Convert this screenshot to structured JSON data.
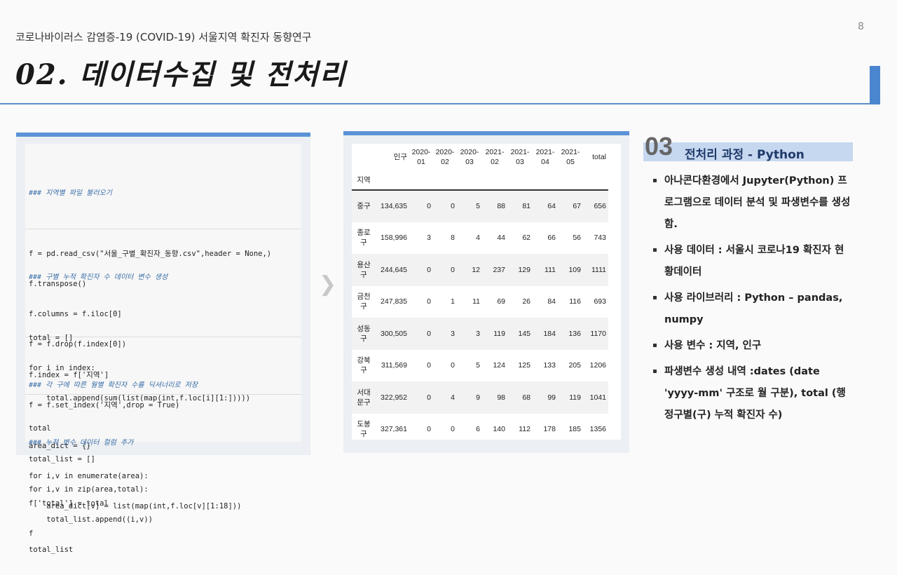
{
  "header": {
    "subtitle": "코로나바이러스 감염증-19 (COVID-19) 서울지역 확진자 동향연구",
    "page_number": "8",
    "title": "02. 데이터수집 및 전처리"
  },
  "code": {
    "blocks": [
      {
        "comment": "### 지역별 파일 불러오기",
        "lines": [
          "f = pd.read_csv(\"서울_구별_확진자_동향.csv\",header = None,)",
          "f.transpose()",
          "f.columns = f.iloc[0]",
          "f = f.drop(f.index[0])",
          "f.index = f['지역']",
          "f = f.set_index('지역',drop = True)"
        ]
      },
      {
        "comment": "### 구별 누적 확진자 수 데이터 변수 생성",
        "lines": [
          "total = []",
          "for i in index:",
          "    total.append(sum(list(map(int,f.loc[i][1:]))))",
          "total",
          "total_list = []",
          "for i,v in zip(area,total):",
          "    total_list.append((i,v))",
          "total_list"
        ]
      },
      {
        "comment": "### 각 구에 따른 월별 확진자 수를 딕셔너리로 저장",
        "lines": [
          "area_dict = {}",
          "for i,v in enumerate(area):",
          "    area_dict[v] = list(map(int,f.loc[v][1:18]))"
        ]
      },
      {
        "comment": "### 누적 변수 데이터 컬럼 추가",
        "lines": [
          "f['total'] = total",
          "f"
        ]
      }
    ]
  },
  "table": {
    "index_label": "지역",
    "columns": [
      "인구",
      "2020-\n01",
      "2020-\n02",
      "2020-\n03",
      "2021-\n02",
      "2021-\n03",
      "2021-\n04",
      "2021-\n05",
      "total"
    ],
    "rows": [
      {
        "region": "중구",
        "values": [
          "134,635",
          "0",
          "0",
          "5",
          "88",
          "81",
          "64",
          "67",
          "656"
        ]
      },
      {
        "region": "종로\n구",
        "values": [
          "158,996",
          "3",
          "8",
          "4",
          "44",
          "62",
          "66",
          "56",
          "743"
        ]
      },
      {
        "region": "용산\n구",
        "values": [
          "244,645",
          "0",
          "0",
          "12",
          "237",
          "129",
          "111",
          "109",
          "1111"
        ]
      },
      {
        "region": "금천\n구",
        "values": [
          "247,835",
          "0",
          "1",
          "11",
          "69",
          "26",
          "84",
          "116",
          "693"
        ]
      },
      {
        "region": "성동\n구",
        "values": [
          "300,505",
          "0",
          "3",
          "3",
          "119",
          "145",
          "184",
          "136",
          "1170"
        ]
      },
      {
        "region": "강북\n구",
        "values": [
          "311,569",
          "0",
          "0",
          "5",
          "124",
          "125",
          "133",
          "205",
          "1206"
        ]
      },
      {
        "region": "서대\n문구",
        "values": [
          "322,952",
          "0",
          "4",
          "9",
          "98",
          "68",
          "99",
          "119",
          "1041"
        ]
      },
      {
        "region": "도봉\n구",
        "values": [
          "327,361",
          "0",
          "0",
          "6",
          "140",
          "112",
          "178",
          "185",
          "1356"
        ]
      }
    ]
  },
  "arrow_icon": "chevron-right-icon",
  "section": {
    "number": "03",
    "title": "전처리 과정 - Python",
    "bullets": [
      "아나콘다환경에서 Jupyter(Python) 프로그램으로 데이터 분석 및 파생변수를 생성함.",
      "사용 데이터 : 서울시 코로나19 확진자 현황데이터",
      "사용 라이브러리 : Python – pandas, numpy",
      "사용 변수 : 지역, 인구",
      "파생변수 생성 내역 :dates (date 'yyyy-mm' 구조로 월 구분), total (행정구별(구) 누적 확진자 수)"
    ]
  }
}
